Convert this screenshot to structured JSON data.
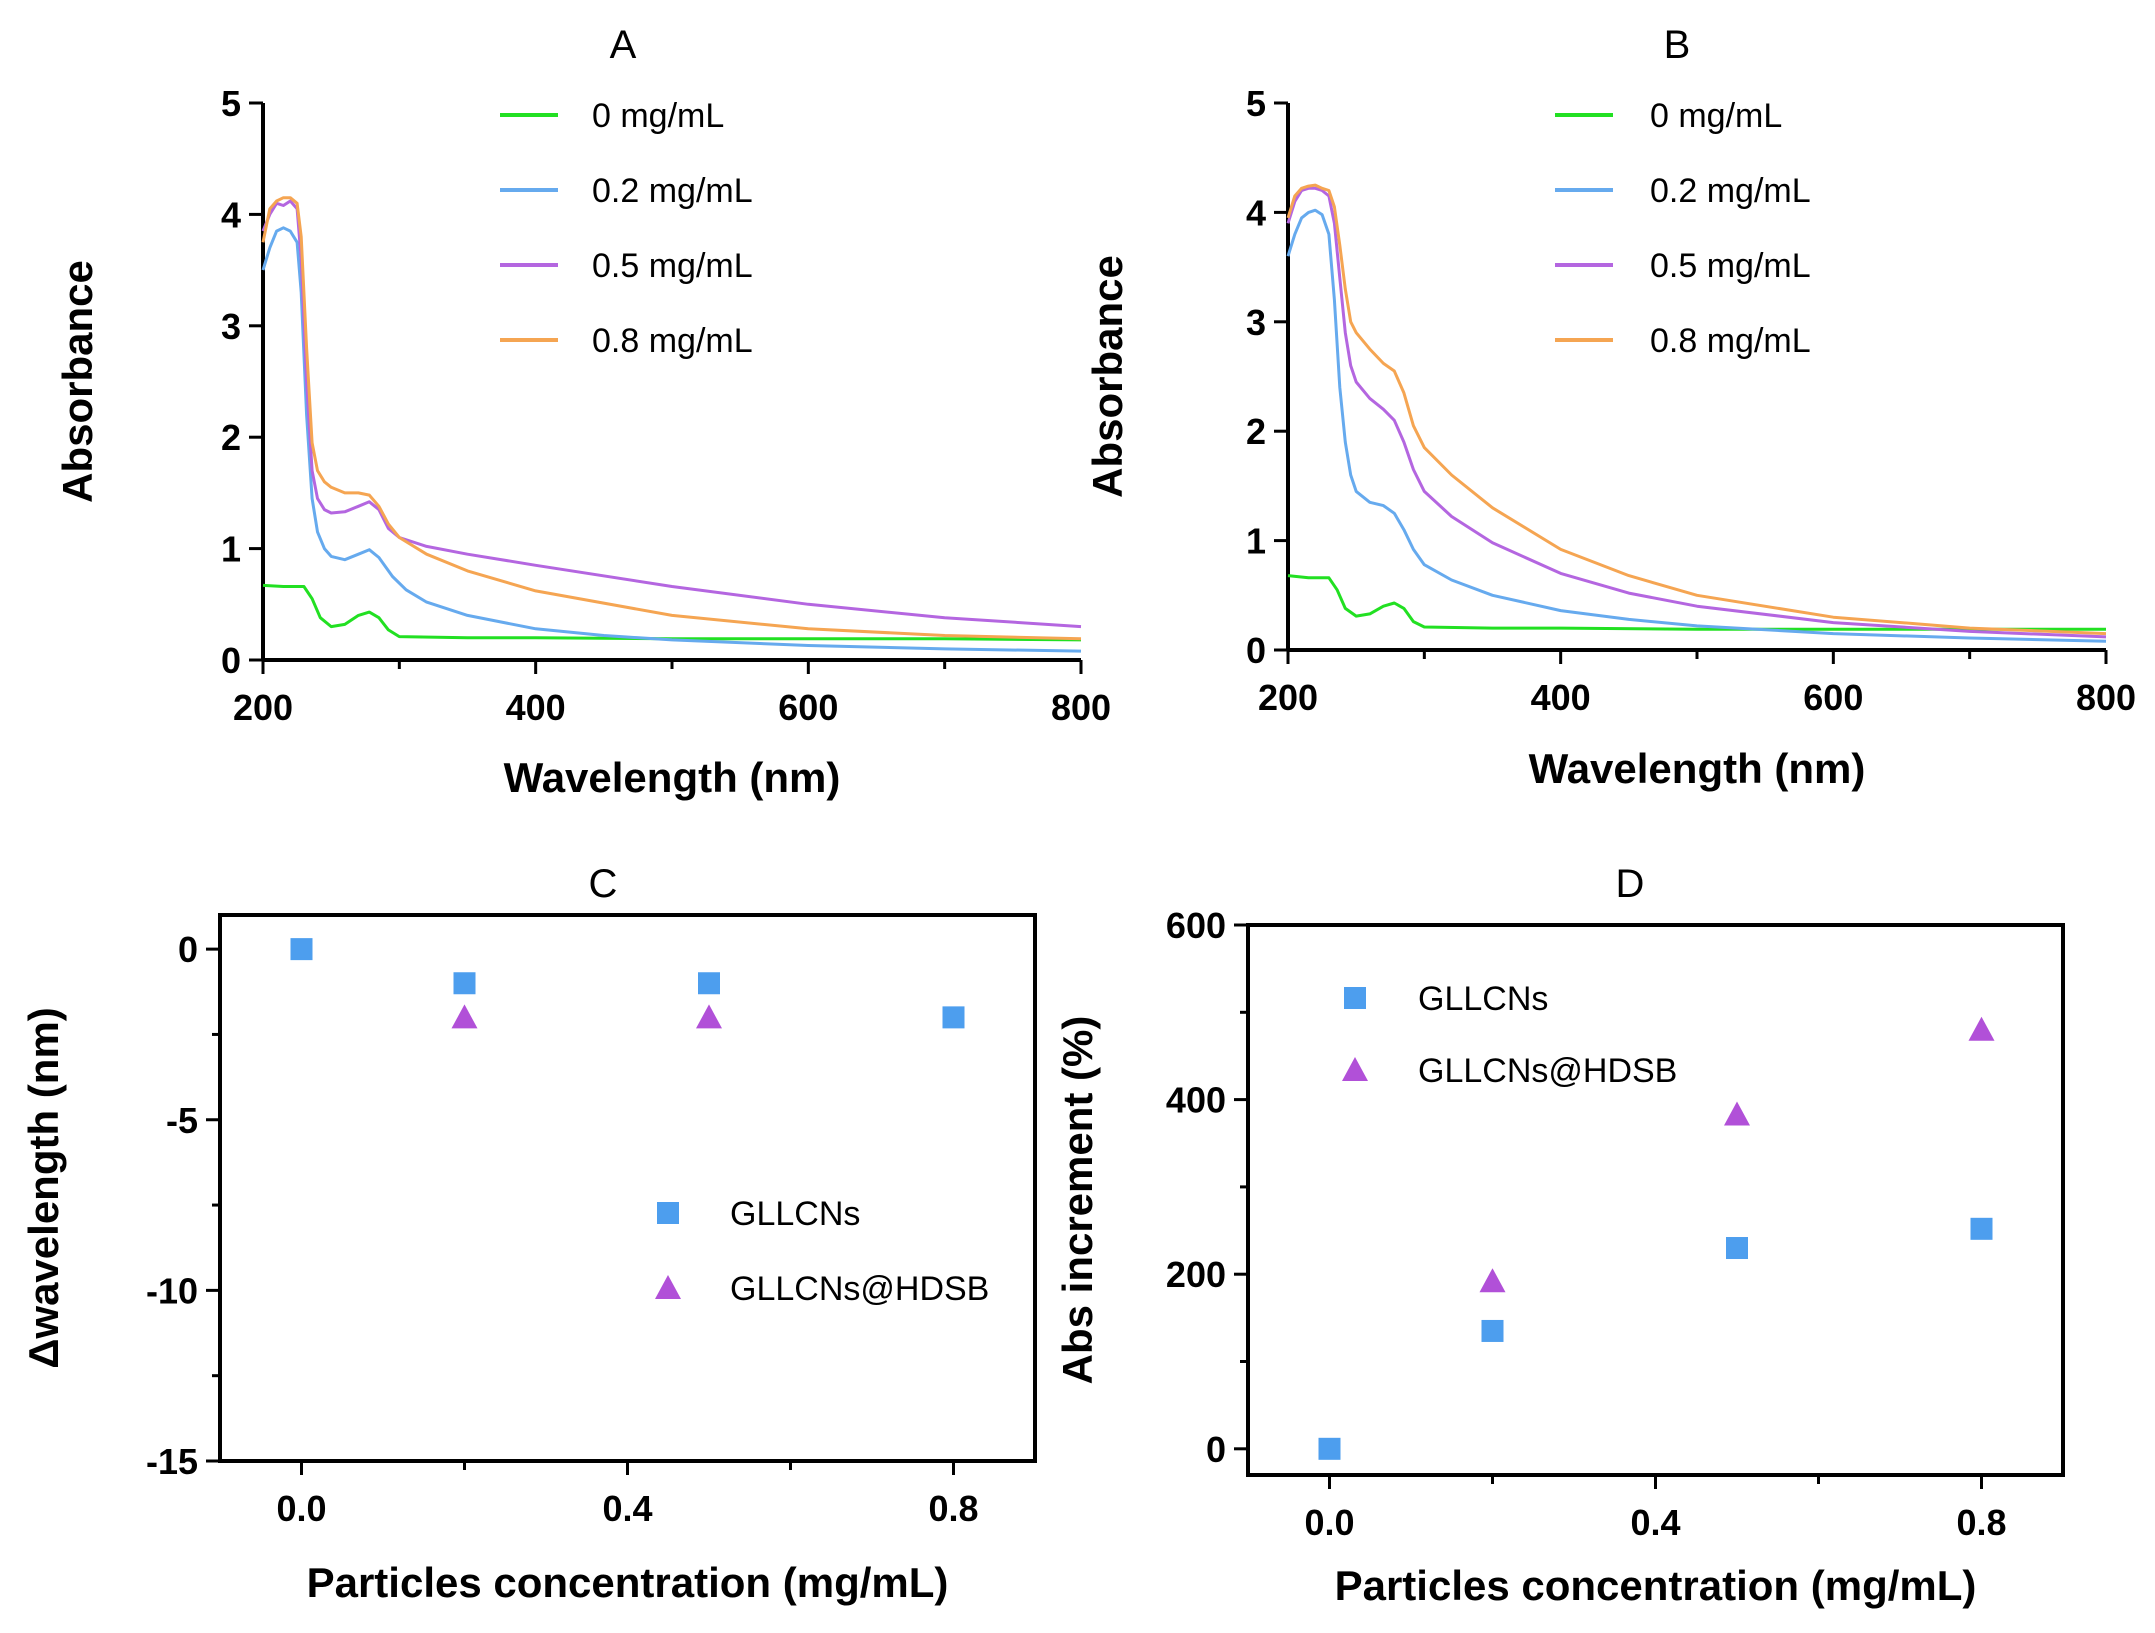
{
  "colors": {
    "green": "#22e022",
    "blue": "#66aaee",
    "purple": "#b466e0",
    "orange": "#f5a552",
    "marker_blue": "#4d9eee",
    "marker_purple": "#b150d8"
  },
  "chart_data": [
    {
      "id": "A",
      "type": "line",
      "title": "A",
      "xlabel": "Wavelength (nm)",
      "ylabel": "Absorbance",
      "xlim": [
        200,
        800
      ],
      "ylim": [
        0,
        5
      ],
      "xticks": [
        200,
        400,
        600,
        800
      ],
      "yticks": [
        0,
        1,
        2,
        3,
        4,
        5
      ],
      "grid": false,
      "legend": "top-center",
      "series": [
        {
          "name": "0 mg/mL",
          "color": "green",
          "x": [
            200,
            215,
            230,
            236,
            242,
            250,
            260,
            270,
            278,
            285,
            292,
            300,
            350,
            400,
            500,
            600,
            700,
            800
          ],
          "y": [
            0.67,
            0.66,
            0.66,
            0.55,
            0.38,
            0.3,
            0.32,
            0.4,
            0.43,
            0.38,
            0.27,
            0.21,
            0.2,
            0.2,
            0.19,
            0.19,
            0.19,
            0.18
          ]
        },
        {
          "name": "0.2 mg/mL",
          "color": "blue",
          "x": [
            200,
            205,
            210,
            215,
            220,
            225,
            228,
            232,
            236,
            240,
            245,
            250,
            260,
            270,
            278,
            285,
            295,
            305,
            320,
            350,
            400,
            450,
            500,
            600,
            700,
            800
          ],
          "y": [
            3.5,
            3.7,
            3.85,
            3.88,
            3.85,
            3.75,
            3.3,
            2.2,
            1.45,
            1.15,
            1.0,
            0.93,
            0.9,
            0.95,
            0.99,
            0.92,
            0.75,
            0.63,
            0.52,
            0.4,
            0.28,
            0.22,
            0.18,
            0.13,
            0.1,
            0.08
          ]
        },
        {
          "name": "0.5 mg/mL",
          "color": "purple",
          "x": [
            200,
            205,
            210,
            215,
            220,
            225,
            228,
            232,
            236,
            240,
            245,
            250,
            260,
            270,
            278,
            285,
            292,
            300,
            320,
            350,
            400,
            500,
            600,
            700,
            800
          ],
          "y": [
            3.85,
            4.0,
            4.1,
            4.08,
            4.12,
            4.05,
            3.6,
            2.5,
            1.7,
            1.45,
            1.35,
            1.32,
            1.33,
            1.38,
            1.42,
            1.35,
            1.18,
            1.1,
            1.02,
            0.95,
            0.85,
            0.66,
            0.5,
            0.38,
            0.3
          ]
        },
        {
          "name": "0.8 mg/mL",
          "color": "orange",
          "x": [
            200,
            205,
            210,
            215,
            220,
            225,
            228,
            232,
            236,
            240,
            245,
            250,
            260,
            270,
            278,
            285,
            292,
            300,
            320,
            350,
            400,
            500,
            600,
            700,
            800
          ],
          "y": [
            3.75,
            4.05,
            4.12,
            4.15,
            4.15,
            4.1,
            3.8,
            2.8,
            1.95,
            1.7,
            1.6,
            1.55,
            1.5,
            1.5,
            1.48,
            1.38,
            1.22,
            1.1,
            0.95,
            0.8,
            0.62,
            0.4,
            0.28,
            0.22,
            0.19
          ]
        }
      ]
    },
    {
      "id": "B",
      "type": "line",
      "title": "B",
      "xlabel": "Wavelength (nm)",
      "ylabel": "Absorbance",
      "xlim": [
        200,
        800
      ],
      "ylim": [
        0,
        5
      ],
      "xticks": [
        200,
        400,
        600,
        800
      ],
      "yticks": [
        0,
        1,
        2,
        3,
        4,
        5
      ],
      "grid": false,
      "legend": "top-center",
      "series": [
        {
          "name": "0 mg/mL",
          "color": "green",
          "x": [
            200,
            215,
            230,
            236,
            242,
            250,
            260,
            270,
            278,
            285,
            292,
            300,
            350,
            400,
            500,
            600,
            700,
            800
          ],
          "y": [
            0.68,
            0.66,
            0.66,
            0.55,
            0.38,
            0.31,
            0.33,
            0.4,
            0.43,
            0.38,
            0.26,
            0.21,
            0.2,
            0.2,
            0.19,
            0.19,
            0.19,
            0.19
          ]
        },
        {
          "name": "0.2 mg/mL",
          "color": "blue",
          "x": [
            200,
            205,
            210,
            215,
            220,
            225,
            230,
            234,
            238,
            242,
            246,
            250,
            260,
            270,
            278,
            285,
            292,
            300,
            320,
            350,
            400,
            450,
            500,
            600,
            700,
            800
          ],
          "y": [
            3.6,
            3.8,
            3.95,
            4.0,
            4.02,
            3.98,
            3.8,
            3.2,
            2.4,
            1.9,
            1.6,
            1.45,
            1.35,
            1.32,
            1.25,
            1.1,
            0.92,
            0.78,
            0.64,
            0.5,
            0.36,
            0.28,
            0.22,
            0.15,
            0.11,
            0.08
          ]
        },
        {
          "name": "0.5 mg/mL",
          "color": "purple",
          "x": [
            200,
            205,
            210,
            215,
            220,
            225,
            230,
            234,
            238,
            242,
            246,
            250,
            260,
            270,
            278,
            285,
            292,
            300,
            320,
            350,
            400,
            450,
            500,
            600,
            700,
            800
          ],
          "y": [
            3.9,
            4.1,
            4.2,
            4.22,
            4.22,
            4.2,
            4.15,
            3.9,
            3.4,
            2.9,
            2.6,
            2.45,
            2.3,
            2.2,
            2.1,
            1.9,
            1.65,
            1.45,
            1.22,
            0.98,
            0.7,
            0.52,
            0.4,
            0.25,
            0.17,
            0.12
          ]
        },
        {
          "name": "0.8 mg/mL",
          "color": "orange",
          "x": [
            200,
            205,
            210,
            215,
            220,
            225,
            230,
            234,
            238,
            242,
            246,
            250,
            260,
            270,
            278,
            285,
            292,
            300,
            320,
            350,
            400,
            450,
            500,
            600,
            700,
            800
          ],
          "y": [
            3.95,
            4.15,
            4.22,
            4.24,
            4.25,
            4.22,
            4.2,
            4.05,
            3.7,
            3.3,
            3.0,
            2.9,
            2.75,
            2.62,
            2.55,
            2.35,
            2.05,
            1.85,
            1.6,
            1.3,
            0.92,
            0.68,
            0.5,
            0.3,
            0.2,
            0.15
          ]
        }
      ]
    },
    {
      "id": "C",
      "type": "scatter",
      "title": "C",
      "xlabel": "Particles concentration (mg/mL)",
      "ylabel": "Δwavelength (nm)",
      "xlim": [
        -0.1,
        0.9
      ],
      "ylim": [
        -15,
        1
      ],
      "xticks": [
        0.0,
        0.4,
        0.8
      ],
      "xtick_labels": [
        "0.0",
        "0.4",
        "0.8"
      ],
      "yticks": [
        0,
        -5,
        -10,
        -15
      ],
      "ytick_labels": [
        "0",
        "-5",
        "-10",
        "-15"
      ],
      "grid": false,
      "legend": "center-right",
      "series": [
        {
          "name": "GLLCNs",
          "marker": "square",
          "color": "marker_blue",
          "x": [
            0.0,
            0.2,
            0.5,
            0.8
          ],
          "y": [
            0,
            -1,
            -1,
            -2
          ]
        },
        {
          "name": "GLLCNs@HDSB",
          "marker": "triangle",
          "color": "marker_purple",
          "x": [
            0.2,
            0.5
          ],
          "y": [
            -2,
            -2
          ]
        }
      ]
    },
    {
      "id": "D",
      "type": "scatter",
      "title": "D",
      "xlabel": "Particles concentration (mg/mL)",
      "ylabel": "Abs increment (%)",
      "xlim": [
        -0.1,
        0.9
      ],
      "ylim": [
        -30,
        600
      ],
      "xticks": [
        0.0,
        0.4,
        0.8
      ],
      "xtick_labels": [
        "0.0",
        "0.4",
        "0.8"
      ],
      "yticks": [
        0,
        200,
        400,
        600
      ],
      "ytick_labels": [
        "0",
        "200",
        "400",
        "600"
      ],
      "grid": false,
      "legend": "top-left",
      "series": [
        {
          "name": "GLLCNs",
          "marker": "square",
          "color": "marker_blue",
          "x": [
            0.0,
            0.2,
            0.5,
            0.8
          ],
          "y": [
            0,
            135,
            230,
            252
          ]
        },
        {
          "name": "GLLCNs@HDSB",
          "marker": "triangle",
          "color": "marker_purple",
          "x": [
            0.2,
            0.5,
            0.8
          ],
          "y": [
            192,
            383,
            480
          ]
        }
      ]
    }
  ]
}
